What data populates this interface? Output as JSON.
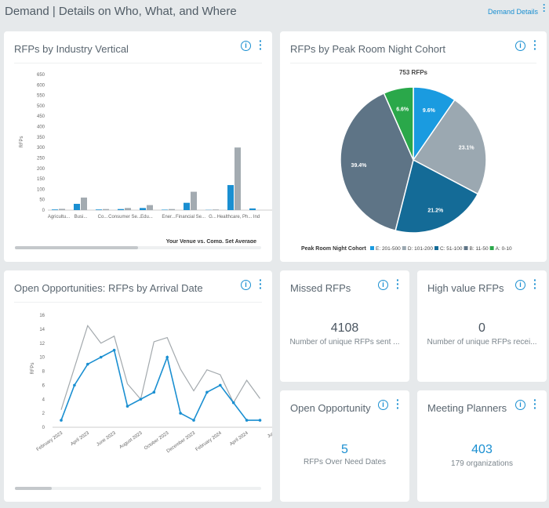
{
  "header": {
    "title": "Demand | Details on Who, What, and Where",
    "link": "Demand Details"
  },
  "chart_data": [
    {
      "type": "bar",
      "title": "RFPs by Industry Vertical",
      "y_label": "RFPs",
      "legend_title": "Your Venue vs. Comp. Set Average",
      "categories": [
        "Agricultu...",
        "Busi...",
        "Co...",
        "Consumer Se...",
        "Edu...",
        "Ener...",
        "Financial Se...",
        "G...",
        "Healthcare, Ph...",
        "Ind"
      ],
      "series": [
        {
          "color": "#1a8fd1",
          "values": [
            3,
            30,
            3,
            5,
            10,
            2,
            35,
            1,
            120,
            8
          ]
        },
        {
          "color": "#a3abb1",
          "values": [
            6,
            60,
            5,
            10,
            24,
            5,
            88,
            3,
            300,
            null
          ]
        }
      ],
      "ylim": [
        0,
        650
      ],
      "yticks": [
        0,
        50,
        100,
        150,
        200,
        250,
        300,
        350,
        400,
        450,
        500,
        550,
        600,
        650
      ],
      "grid": false
    },
    {
      "type": "pie",
      "title": "RFPs by Peak Room Night Cohort",
      "subtitle": "753 RFPs",
      "legend_title": "Peak Room Night Cohort",
      "categories": [
        "E: 201-500",
        "D: 101-200",
        "C: 51-100",
        "B: 11-50",
        "A: 0-10"
      ],
      "values": [
        9.6,
        23.1,
        21.2,
        39.4,
        6.6
      ],
      "value_labels": [
        "9.6%",
        "23.1%",
        "21.2%",
        "39.4%",
        "6.6%"
      ],
      "colors": [
        "#1a9be0",
        "#9ba8b1",
        "#146b97",
        "#5e7486",
        "#2aa84a"
      ]
    },
    {
      "type": "line",
      "title": "Open Opportunities: RFPs by Arrival Date",
      "y_label": "RFPs",
      "categories": [
        "February 2023",
        null,
        "April 2023",
        null,
        "June 2023",
        null,
        "August 2023",
        null,
        "October 2023",
        null,
        "December 2023",
        null,
        "February 2024",
        null,
        "April 2024",
        null,
        "Jun"
      ],
      "series": [
        {
          "color": "#1a8fd1",
          "values": [
            1,
            6,
            9,
            10,
            11,
            3,
            4,
            5,
            10,
            2,
            1,
            5,
            6,
            3.5,
            1,
            1,
            null
          ]
        },
        {
          "color": "#a3a9ad",
          "values": [
            2.5,
            8.5,
            14.5,
            12,
            13,
            6.2,
            4,
            12.2,
            12.8,
            8.3,
            5.2,
            8.2,
            7.5,
            3.5,
            6.7,
            4.1,
            null
          ]
        }
      ],
      "ylim": [
        0,
        16
      ],
      "yticks": [
        0,
        2,
        4,
        6,
        8,
        10,
        12,
        14,
        16
      ],
      "grid": false
    }
  ],
  "cards": [
    {
      "title": "Missed RFPs",
      "value": 4108,
      "caption": "Number of unique RFPs sent ..."
    },
    {
      "title": "High value RFPs",
      "value": 0,
      "caption": "Number of unique RFPs recei..."
    },
    {
      "title": "Open Opportunity",
      "value": 5,
      "caption": "RFPs Over Need Dates"
    },
    {
      "title": "Meeting Planners",
      "value": 403,
      "caption": "179 organizations"
    }
  ]
}
